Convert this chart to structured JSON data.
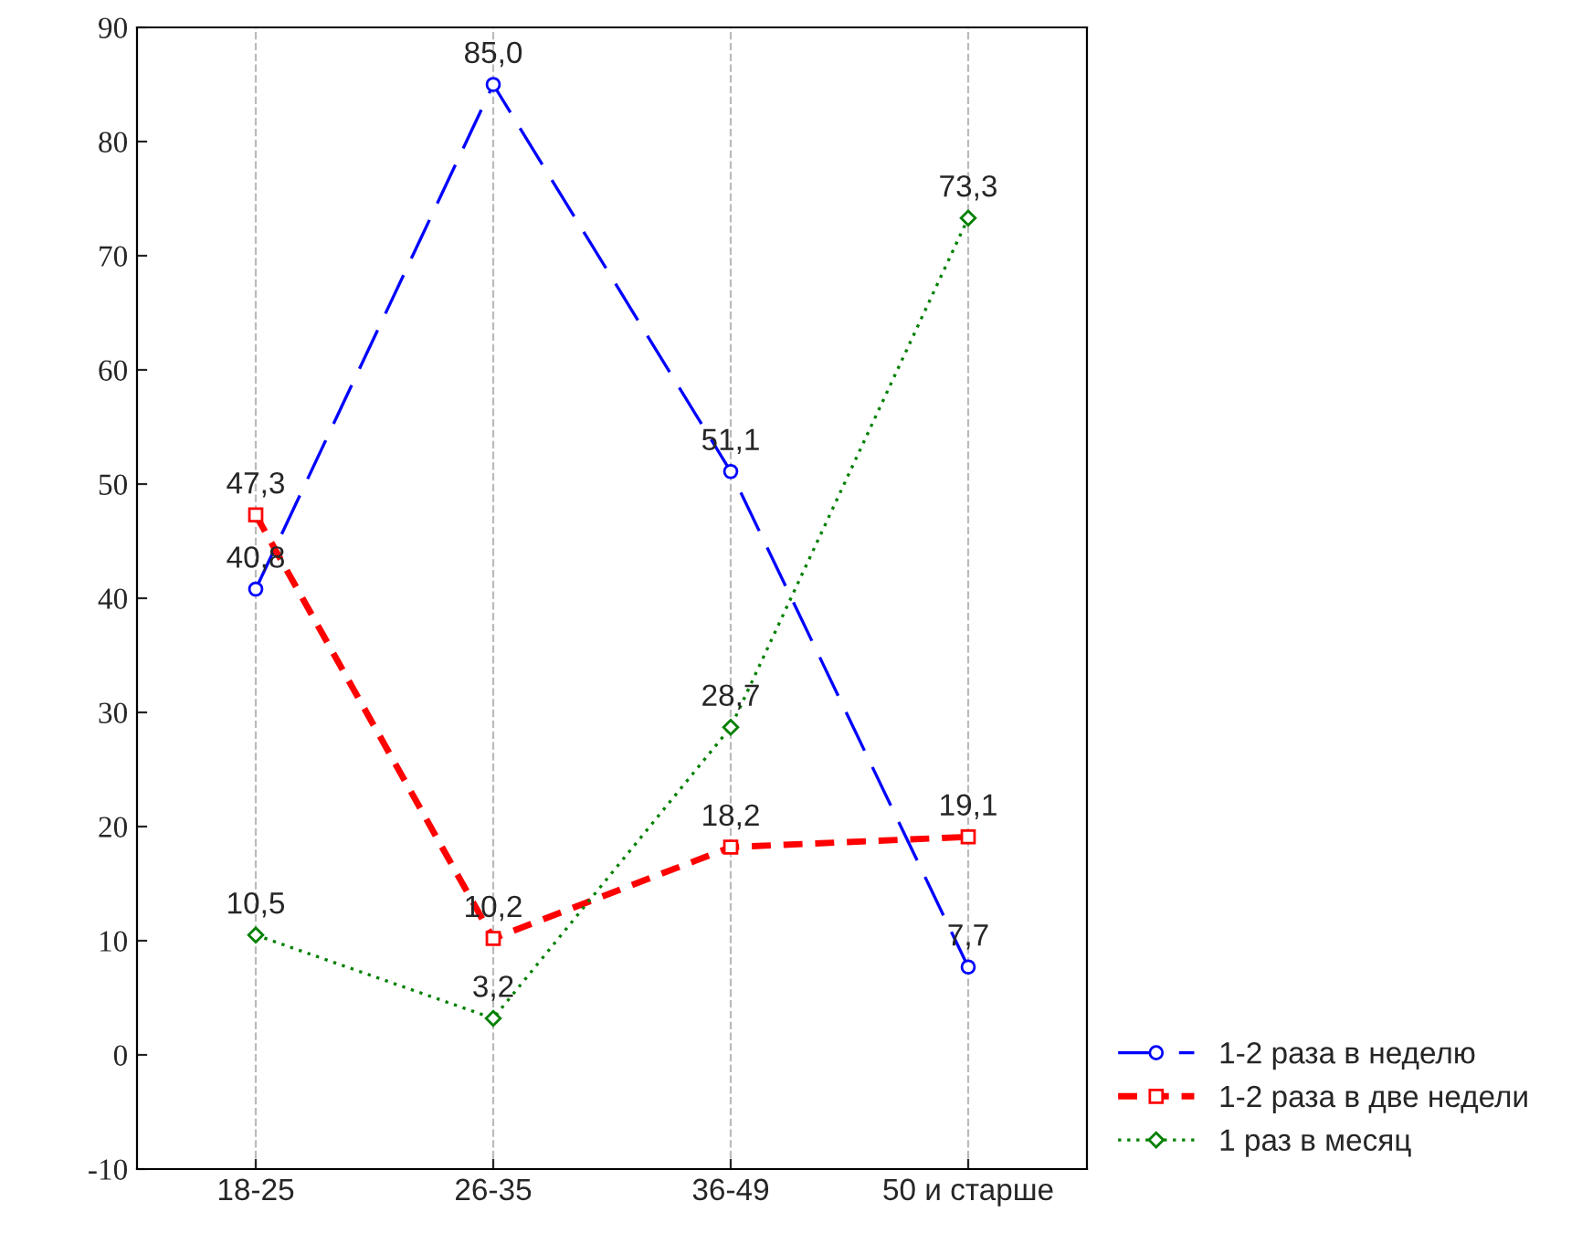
{
  "chart_data": {
    "type": "line",
    "categories": [
      "18-25",
      "26-35",
      "36-49",
      "50 и старше"
    ],
    "series": [
      {
        "name": "1-2 раза в неделю",
        "color": "#0000ff",
        "values": [
          40.8,
          85.0,
          51.1,
          7.7
        ],
        "value_labels": [
          "40,8",
          "85,0",
          "51,1",
          "7,7"
        ],
        "marker": "circle",
        "line_style": "dashed"
      },
      {
        "name": "1-2 раза в две недели",
        "color": "#ff0000",
        "values": [
          47.3,
          10.2,
          18.2,
          19.1
        ],
        "value_labels": [
          "47,3",
          "10,2",
          "18,2",
          "19,1"
        ],
        "marker": "square",
        "line_style": "dashed"
      },
      {
        "name": "1 раз в месяц",
        "color": "#008000",
        "values": [
          10.5,
          3.2,
          28.7,
          73.3
        ],
        "value_labels": [
          "10,5",
          "3,2",
          "28,7",
          "73,3"
        ],
        "marker": "diamond",
        "line_style": "dotted"
      }
    ],
    "ylim": [
      -10,
      90
    ],
    "yticks": [
      -10,
      0,
      10,
      20,
      30,
      40,
      50,
      60,
      70,
      80,
      90
    ],
    "grid": "x",
    "legend": "bottom right"
  }
}
